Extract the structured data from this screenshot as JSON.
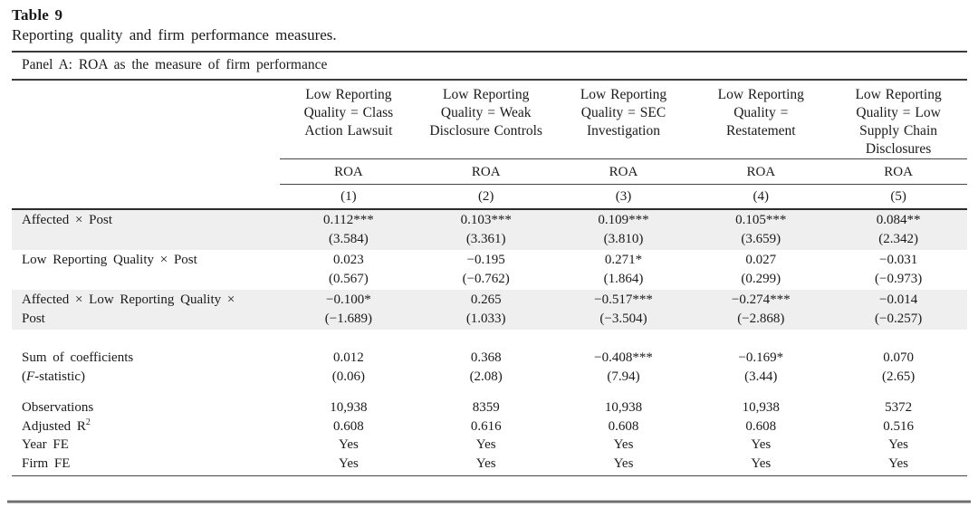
{
  "title": "Table 9",
  "subtitle": "Reporting quality and firm performance measures.",
  "colors": {
    "text": "#1a1a1a",
    "row_shade": "#efefef",
    "rule_dark": "#3a3a3a",
    "rule_gray": "#8d8d8d"
  },
  "panel": {
    "label": "Panel A: ROA as the measure of firm performance",
    "columns": [
      {
        "header": "Low Reporting Quality = Class Action Lawsuit",
        "dep_var": "ROA",
        "number": "(1)"
      },
      {
        "header": "Low Reporting Quality = Weak Disclosure Controls",
        "dep_var": "ROA",
        "number": "(2)"
      },
      {
        "header": "Low Reporting Quality = SEC Investigation",
        "dep_var": "ROA",
        "number": "(3)"
      },
      {
        "header": "Low Reporting Quality = Restatement",
        "dep_var": "ROA",
        "number": "(4)"
      },
      {
        "header": "Low Reporting Quality = Low Supply Chain Disclosures",
        "dep_var": "ROA",
        "number": "(5)"
      }
    ],
    "coef_rows": [
      {
        "label": "Affected × Post",
        "estimates": [
          "0.112***",
          "0.103***",
          "0.109***",
          "0.105***",
          "0.084**"
        ],
        "tstats": [
          "(3.584)",
          "(3.361)",
          "(3.810)",
          "(3.659)",
          "(2.342)"
        ]
      },
      {
        "label": "Low Reporting Quality × Post",
        "estimates": [
          "0.023",
          "−0.195",
          "0.271*",
          "0.027",
          "−0.031"
        ],
        "tstats": [
          "(0.567)",
          "(−0.762)",
          "(1.864)",
          "(0.299)",
          "(−0.973)"
        ]
      },
      {
        "label": "Affected × Low Reporting Quality × Post",
        "estimates": [
          "−0.100*",
          "0.265",
          "−0.517***",
          "−0.274***",
          "−0.014"
        ],
        "tstats": [
          "(−1.689)",
          "(1.033)",
          "(−3.504)",
          "(−2.868)",
          "(−0.257)"
        ]
      }
    ],
    "sum_row": {
      "label": "Sum of coefficients",
      "fstat_open": "(",
      "fstat_letter": "F",
      "fstat_rest": "-statistic)",
      "values": [
        "0.012",
        "0.368",
        "−0.408***",
        "−0.169*",
        "0.070"
      ],
      "fstats": [
        "(0.06)",
        "(2.08)",
        "(7.94)",
        "(3.44)",
        "(2.65)"
      ]
    },
    "stats_rows": [
      {
        "label": "Observations",
        "sup": "",
        "values": [
          "10,938",
          "8359",
          "10,938",
          "10,938",
          "5372"
        ]
      },
      {
        "label": "Adjusted R",
        "sup": "2",
        "values": [
          "0.608",
          "0.616",
          "0.608",
          "0.608",
          "0.516"
        ]
      },
      {
        "label": "Year FE",
        "sup": "",
        "values": [
          "Yes",
          "Yes",
          "Yes",
          "Yes",
          "Yes"
        ]
      },
      {
        "label": "Firm FE",
        "sup": "",
        "values": [
          "Yes",
          "Yes",
          "Yes",
          "Yes",
          "Yes"
        ]
      }
    ]
  }
}
